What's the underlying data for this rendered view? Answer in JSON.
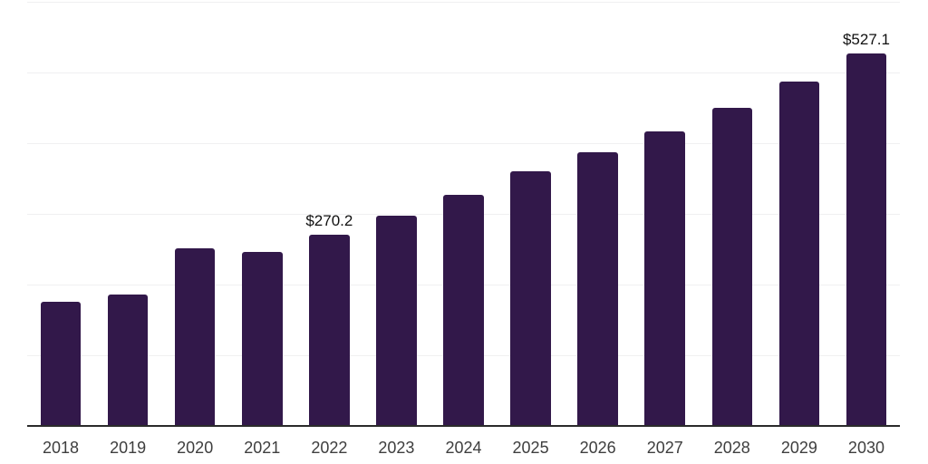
{
  "chart_data": {
    "type": "bar",
    "title": "",
    "xlabel": "",
    "ylabel": "",
    "categories": [
      "2018",
      "2019",
      "2020",
      "2021",
      "2022",
      "2023",
      "2024",
      "2025",
      "2026",
      "2027",
      "2028",
      "2029",
      "2030"
    ],
    "values": [
      175.6,
      186.2,
      251.3,
      246.2,
      270.2,
      297.4,
      326.9,
      360.3,
      387.2,
      416.7,
      450.0,
      487.2,
      527.1
    ],
    "annotations": [
      {
        "category": "2022",
        "text": "$270.2"
      },
      {
        "category": "2030",
        "text": "$527.1"
      }
    ],
    "value_prefix": "$",
    "ylim": [
      0,
      600
    ],
    "gridline_values": [
      100,
      200,
      300,
      400,
      500,
      600
    ],
    "grid": "horizontal",
    "y_axis_labels_visible": false,
    "legend": "none"
  },
  "colors": {
    "bar": "#32184A",
    "gridline": "#f0f0f1",
    "axis_line": "#2b2b2b",
    "tick_label": "#3e3e3e",
    "data_label": "#111111",
    "background": "#ffffff"
  }
}
